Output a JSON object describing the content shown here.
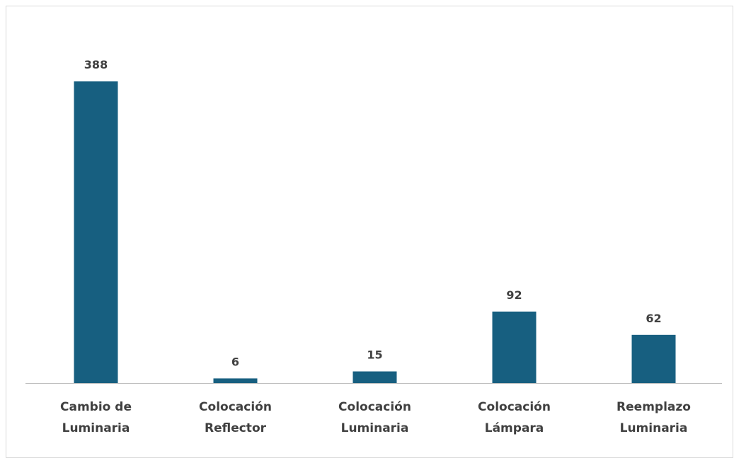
{
  "chart_data": {
    "type": "bar",
    "categories": [
      [
        "Cambio de",
        "Luminaria"
      ],
      [
        "Colocación",
        "Reflector"
      ],
      [
        "Colocación",
        "Luminaria"
      ],
      [
        "Colocación",
        "Lámpara"
      ],
      [
        "Reemplazo",
        "Luminaria"
      ]
    ],
    "values": [
      388,
      6,
      15,
      92,
      62
    ],
    "data_labels": [
      "388",
      "6",
      "15",
      "92",
      "62"
    ],
    "title": "",
    "xlabel": "",
    "ylabel": "",
    "ylim": [
      0,
      400
    ],
    "grid": false,
    "legend": "none",
    "bar_color": "#175f80",
    "axis_color": "#bfbfbf",
    "text_color": "#404040"
  }
}
